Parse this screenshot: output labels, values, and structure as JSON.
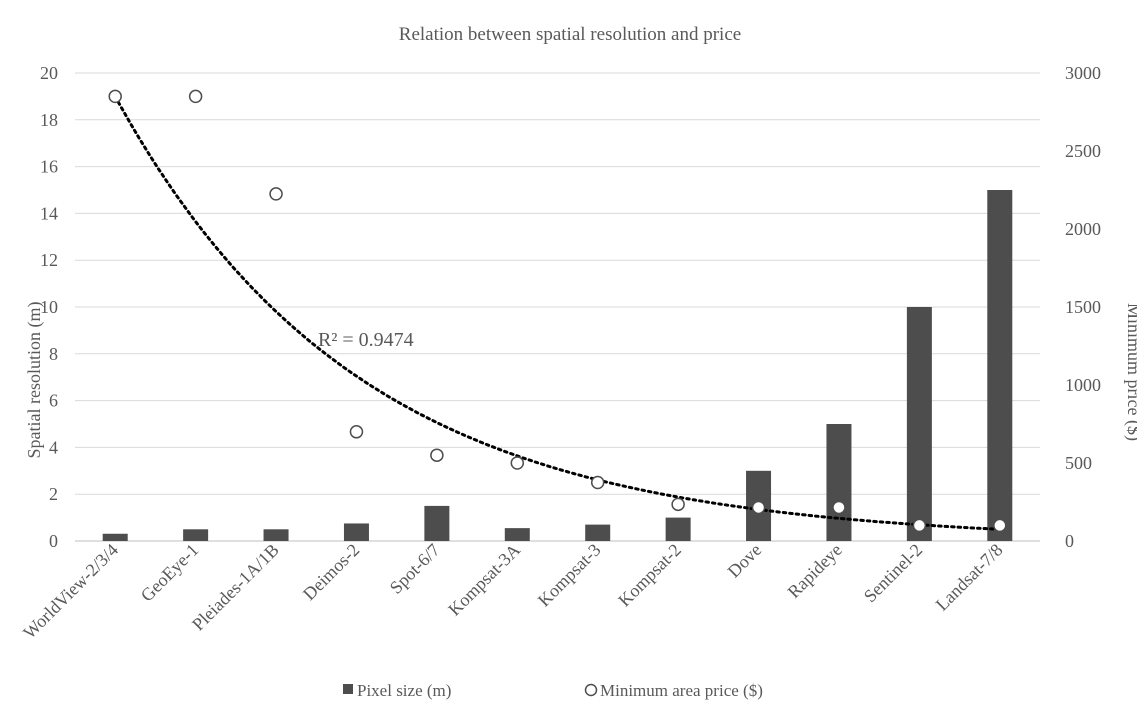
{
  "colors": {
    "bar": "#4d4d4d",
    "marker_stroke": "#4d4d4d",
    "marker_fill": "#ffffff",
    "gridline": "#d9d9d9",
    "trendline": "#000000",
    "text": "#595959"
  },
  "chart_data": {
    "type": "bar",
    "title": "Relation between spatial resolution and price",
    "xlabel": "",
    "ylabel": "Spatial resolution (m)",
    "y2label": "Minimum price ($)",
    "ylim": [
      0,
      20
    ],
    "y2lim": [
      0,
      3000
    ],
    "yticks": [
      "0",
      "2",
      "4",
      "6",
      "8",
      "10",
      "12",
      "14",
      "16",
      "18",
      "20"
    ],
    "y2ticks": [
      "0",
      "500",
      "1000",
      "1500",
      "2000",
      "2500",
      "3000"
    ],
    "grid": true,
    "legend_position": "bottom",
    "categories": [
      "WorldView-2/3/4",
      "GeoEye-1",
      "Pleiades-1A/1B",
      "Deimos-2",
      "Spot-6/7",
      "Kompsat-3A",
      "Kompsat-3",
      "Kompsat-2",
      "Dove",
      "Rapideye",
      "Sentinel-2",
      "Landsat-7/8"
    ],
    "series": [
      {
        "name": "Pixel size (m)",
        "type": "bar",
        "axis": "left",
        "values": [
          0.31,
          0.5,
          0.5,
          0.75,
          1.5,
          0.55,
          0.7,
          1.0,
          3.0,
          5.0,
          10.0,
          15.0
        ]
      },
      {
        "name": "Minimum area price ($)",
        "type": "scatter",
        "axis": "right",
        "values": [
          2850,
          2850,
          2225,
          700,
          550,
          500,
          375,
          235,
          215,
          215,
          100,
          100
        ]
      }
    ],
    "trendline": {
      "type": "exponential",
      "axis": "right",
      "start_value": 2850,
      "end_value": 75,
      "label": "R² = 0.9474"
    }
  }
}
